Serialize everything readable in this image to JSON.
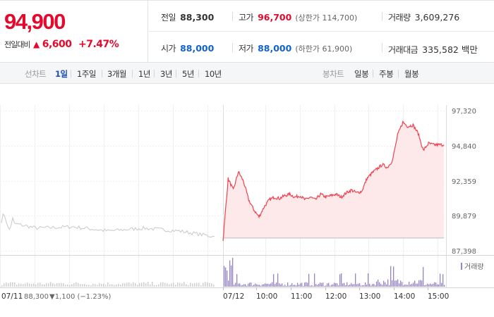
{
  "summary": {
    "current_price": "94,900",
    "change_label": "전일대비",
    "change_arrow": "▲",
    "change_amount": "6,600",
    "change_rate": "+7.47%",
    "prev_close_label": "전일",
    "prev_close": "88,300",
    "high_label": "고가",
    "high": "96,700",
    "upper_limit": "(상한가 114,700)",
    "volume_label": "거래량",
    "volume": "3,609,276",
    "open_label": "시가",
    "open": "88,000",
    "low_label": "저가",
    "low": "88,000",
    "lower_limit": "(하한가 61,900)",
    "trade_value_label": "거래대금",
    "trade_value": "335,582 백만",
    "up_color": "#e5092d",
    "down_color": "#1062d3"
  },
  "toolbar": {
    "line_chart_label": "선차트",
    "periods": [
      "1일",
      "1주일",
      "3개월",
      "1년",
      "3년",
      "5년",
      "10년"
    ],
    "active_period": "1일",
    "candle_chart_label": "봉차트",
    "candle_periods": [
      "일봉",
      "주봉",
      "월봉"
    ]
  },
  "chart": {
    "y_ticks": [
      "97,320",
      "94,840",
      "92,359",
      "89,879",
      "87,398"
    ],
    "volume_legend": "거래량",
    "prev_day_label": "07/11",
    "prev_day_close": "88,300",
    "prev_day_change": "▼1,100 (−1.23%)",
    "time_labels": [
      "07/12",
      "10:00",
      "11:00",
      "12:00",
      "13:00",
      "14:00",
      "15:00"
    ],
    "colors": {
      "today_line": "#f0424f",
      "today_fill": "#fde8ea",
      "prev_line": "#c8c8c8",
      "volume_today": "#9585c4",
      "volume_prev": "#cfcfcf",
      "prev_label_blue": "#1062d3"
    }
  },
  "chart_data": {
    "type": "line",
    "ylim": [
      87398,
      97320
    ],
    "y_ticks": [
      97320,
      94840,
      92359,
      89879,
      87398
    ],
    "baseline": 88300,
    "series": [
      {
        "x": [
          "09:00",
          "09:05",
          "09:10",
          "09:15",
          "09:20",
          "09:25",
          "09:30",
          "09:40",
          "09:50",
          "10:00",
          "10:10",
          "10:20",
          "10:30",
          "10:40",
          "10:50",
          "11:00",
          "11:10",
          "11:20",
          "11:30",
          "11:40",
          "11:50",
          "12:00",
          "12:10",
          "12:20",
          "12:30",
          "12:40",
          "12:50",
          "13:00",
          "13:10",
          "13:20",
          "13:30",
          "13:40",
          "13:50",
          "14:00",
          "14:10",
          "14:15",
          "14:20",
          "14:25",
          "14:30",
          "14:40",
          "14:50",
          "15:00",
          "15:10",
          "15:20"
        ],
        "values": [
          88100,
          92500,
          91700,
          93000,
          92300,
          91000,
          90300,
          89800,
          90500,
          91000,
          91200,
          91100,
          91300,
          91400,
          91200,
          91300,
          91000,
          91200,
          91000,
          91400,
          91200,
          91300,
          91400,
          91200,
          91500,
          91700,
          91500,
          91600,
          92500,
          92900,
          93200,
          93500,
          93300,
          93800,
          95600,
          96500,
          96200,
          96300,
          95700,
          94500,
          95000,
          94900,
          94900,
          94900
        ]
      },
      {
        "x": [
          "07/11 09:00",
          "07/11 10:00",
          "07/11 11:00",
          "07/11 12:00",
          "07/11 13:00",
          "07/11 14:00",
          "07/11 15:00"
        ],
        "values": [
          89500,
          89000,
          89100,
          88800,
          89000,
          88800,
          88400
        ]
      }
    ]
  }
}
